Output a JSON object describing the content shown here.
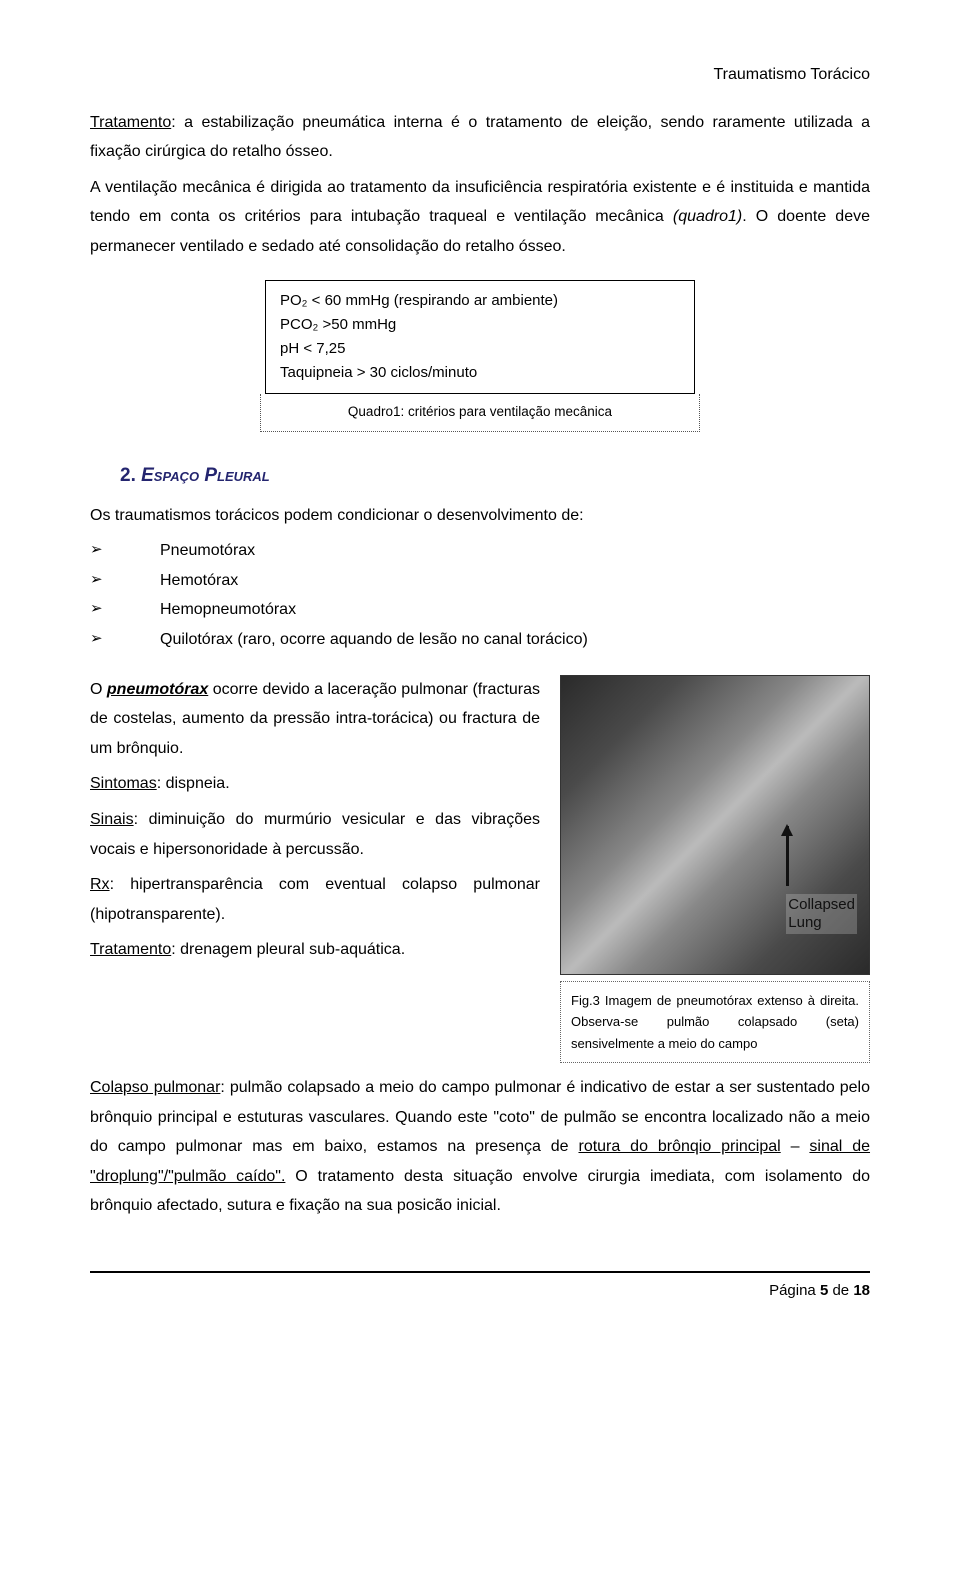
{
  "header": {
    "title": "Traumatismo Torácico"
  },
  "p1": {
    "lead_underline": "Tratamento",
    "text": ": a estabilização pneumática interna é o tratamento de eleição, sendo raramente utilizada a fixação cirúrgica do retalho ósseo."
  },
  "p2": {
    "text1": "A ventilação mecânica é dirigida ao tratamento da insuficiência respiratória existente e é instituida e mantida tendo em conta os critérios para intubação traqueal e ventilação mecânica ",
    "italic": "(quadro1)",
    "text2": ". O doente deve permanecer ventilado e sedado até consolidação do retalho ósseo."
  },
  "box": {
    "lines": [
      "PO₂ < 60 mmHg (respirando ar ambiente)",
      "PCO₂ >50 mmHg",
      "pH < 7,25",
      "Taquipneia > 30 ciclos/minuto"
    ],
    "caption": "Quadro1: critérios para ventilação mecânica"
  },
  "section2": {
    "num": "2.",
    "title": " Espaço Pleural",
    "intro": "Os traumatismos torácicos podem condicionar o desenvolvimento de:",
    "items": [
      "Pneumotórax",
      "Hemotórax",
      "Hemopneumotórax",
      "Quilotórax (raro, ocorre aquando de lesão no canal torácico)"
    ]
  },
  "pneumo": {
    "p1a": "O ",
    "p1b_ui": "pneumotórax",
    "p1c": " ocorre devido a laceração pulmonar (fracturas de costelas, aumento da pressão intra-torácica) ou fractura de um brônquio.",
    "s_lead": "Sintomas",
    "s_text": ": dispneia.",
    "si_lead": "Sinais",
    "si_text": ": diminuição do murmúrio vesicular e das vibrações vocais e hipersonoridade à percussão.",
    "rx_lead": "Rx",
    "rx_text": ": hipertransparência com eventual colapso pulmonar (hipotransparente).",
    "tr_lead": "Tratamento",
    "tr_text": ": drenagem pleural sub-aquática."
  },
  "xray": {
    "label": "Collapsed\nLung",
    "caption": "Fig.3 Imagem de pneumotórax extenso à direita. Observa-se pulmão colapsado (seta) sensivelmente a meio do campo"
  },
  "colapso": {
    "lead": "Colapso pulmonar",
    "t1": ": pulmão colapsado a meio do campo pulmonar é indicativo de estar a ser sustentado pelo brônquio principal e estuturas vasculares. Quando este \"coto\" de pulmão se encontra localizado não a meio do campo pulmonar mas em baixo, estamos na presença de ",
    "u1": "rotura do brônqio principal",
    "t2": " – ",
    "u2": "sinal de \"droplung\"/\"pulmão caído\".",
    "t3": " O tratamento desta situação envolve cirurgia imediata, com isolamento do brônquio afectado, sutura e fixação na sua posicão inicial."
  },
  "footer": {
    "prefix": "Página ",
    "cur": "5",
    "mid": " de ",
    "total": "18"
  },
  "colors": {
    "heading": "#24256f",
    "text": "#000000",
    "bg": "#ffffff"
  }
}
